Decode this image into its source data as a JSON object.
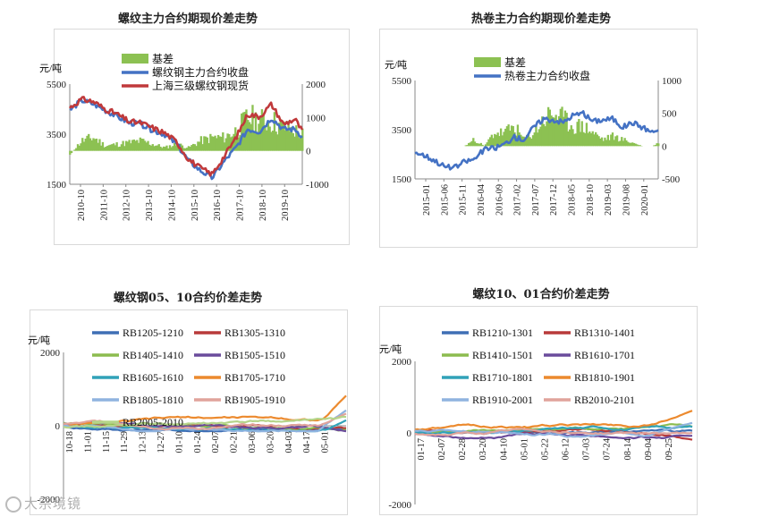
{
  "charts": [
    {
      "id": "c1",
      "title": "螺纹主力合约期现价差走势",
      "unit": "元/吨",
      "chart_data": {
        "type": "line",
        "title": "螺纹主力合约期现价差走势",
        "ylabel_left": "元/吨",
        "ylim_left": [
          1500,
          5500
        ],
        "yticks_left": [
          1500,
          3500,
          5500
        ],
        "ylim_right": [
          -1000,
          2000
        ],
        "yticks_right": [
          -1000,
          0,
          1000,
          2000
        ],
        "xticks": [
          "2010-10",
          "2011-10",
          "2012-10",
          "2013-10",
          "2014-10",
          "2015-10",
          "2016-10",
          "2017-10",
          "2018-10",
          "2019-10"
        ],
        "legend": [
          "基差",
          "螺纹钢主力合约收盘",
          "上海三级螺纹钢现货"
        ],
        "x_index": [
          0,
          0.5,
          1,
          1.5,
          2,
          2.5,
          3,
          3.5,
          4,
          4.5,
          5,
          5.5,
          6,
          6.5,
          7,
          7.5,
          8,
          8.5,
          9,
          9.5,
          9.8
        ],
        "series": [
          {
            "name": "螺纹钢主力合约收盘",
            "color": "#4472c4",
            "axis": "left",
            "values": [
              4450,
              4850,
              4700,
              4450,
              4200,
              3950,
              3900,
              3650,
              3500,
              3100,
              2450,
              2050,
              1750,
              2400,
              2950,
              3700,
              3600,
              4150,
              3700,
              3700,
              3400
            ]
          },
          {
            "name": "上海三级螺纹钢现货",
            "color": "#c0393b",
            "axis": "left",
            "values": [
              4550,
              4900,
              4800,
              4500,
              4300,
              4000,
              3950,
              3750,
              3550,
              3200,
              2500,
              2150,
              1900,
              2600,
              3350,
              4300,
              4200,
              4700,
              3900,
              4100,
              3600
            ]
          },
          {
            "name": "基差",
            "color": "#8cc152",
            "axis": "right",
            "type": "area",
            "values": [
              -100,
              300,
              400,
              150,
              200,
              250,
              300,
              200,
              100,
              200,
              100,
              300,
              400,
              400,
              600,
              1000,
              900,
              900,
              700,
              600,
              500
            ]
          }
        ]
      }
    },
    {
      "id": "c2",
      "title": "热卷主力合约期现价差走势",
      "unit": "元/吨",
      "chart_data": {
        "type": "line",
        "title": "热卷主力合约期现价差走势",
        "ylabel_left": "元/吨",
        "ylim_left": [
          1500,
          5500
        ],
        "yticks_left": [
          1500,
          3500,
          5500
        ],
        "ylim_right": [
          -500,
          1000
        ],
        "yticks_right": [
          -500,
          0,
          500,
          1000
        ],
        "xticks": [
          "2015-01",
          "2015-06",
          "2015-11",
          "2016-04",
          "2016-09",
          "2017-02",
          "2017-07",
          "2017-12",
          "2018-05",
          "2018-10",
          "2019-03",
          "2019-08",
          "2020-01"
        ],
        "legend": [
          "基差",
          "热卷主力合约收盘"
        ],
        "x_index": [
          0,
          0.5,
          1,
          1.5,
          2,
          2.5,
          3,
          3.5,
          4,
          4.5,
          5,
          5.5,
          6,
          6.5,
          7,
          7.5,
          8,
          8.5,
          9,
          9.5,
          10,
          10.5,
          11,
          11.5,
          12,
          12.3
        ],
        "series": [
          {
            "name": "热卷主力合约收盘",
            "color": "#4472c4",
            "axis": "left",
            "values": [
              2600,
              2450,
              2250,
              2000,
              1950,
              2200,
              2300,
              2700,
              2750,
              2900,
              3200,
              3100,
              3600,
              3950,
              3900,
              3800,
              4100,
              4150,
              3850,
              3900,
              3950,
              3600,
              3800,
              3600,
              3400,
              3500
            ]
          },
          {
            "name": "基差",
            "color": "#8cc152",
            "axis": "right",
            "type": "area",
            "values": [
              0,
              0,
              0,
              0,
              0,
              0,
              100,
              0,
              200,
              200,
              300,
              100,
              200,
              400,
              500,
              400,
              300,
              300,
              200,
              100,
              150,
              100,
              50,
              0,
              0,
              50
            ]
          }
        ]
      }
    },
    {
      "id": "c3",
      "title": "螺纹钢05、10合约价差走势",
      "unit": "元/吨",
      "chart_data": {
        "type": "line",
        "title": "螺纹钢05、10合约价差走势",
        "ylabel": "元/吨",
        "ylim": [
          -2000,
          2000
        ],
        "yticks": [
          -2000,
          0,
          2000
        ],
        "xticks": [
          "10-18",
          "11-01",
          "11-15",
          "11-29",
          "12-13",
          "12-27",
          "01-10",
          "01-24",
          "02-07",
          "02-21",
          "03-06",
          "03-20",
          "04-03",
          "04-17",
          "05-01"
        ],
        "series": [
          {
            "name": "RB1205-1210",
            "color": "#3f6fb5"
          },
          {
            "name": "RB1305-1310",
            "color": "#b83a3a"
          },
          {
            "name": "RB1405-1410",
            "color": "#8cbc4f"
          },
          {
            "name": "RB1505-1510",
            "color": "#6a4b9c"
          },
          {
            "name": "RB1605-1610",
            "color": "#31a2b8"
          },
          {
            "name": "RB1705-1710",
            "color": "#ec8a2e"
          },
          {
            "name": "RB1805-1810",
            "color": "#8fb3df"
          },
          {
            "name": "RB1905-1910",
            "color": "#e0a39b"
          },
          {
            "name": "RB2005-2010",
            "color": "#b5d58a"
          }
        ]
      }
    },
    {
      "id": "c4",
      "title": "螺纹10、01合约价差走势",
      "unit": "元/吨",
      "chart_data": {
        "type": "line",
        "title": "螺纹10、01合约价差走势",
        "ylabel": "元/吨",
        "ylim": [
          -2000,
          2000
        ],
        "yticks": [
          -2000,
          0,
          2000
        ],
        "xticks": [
          "01-17",
          "02-07",
          "02-28",
          "03-20",
          "04-10",
          "05-01",
          "05-22",
          "06-12",
          "07-03",
          "07-24",
          "08-14",
          "09-04",
          "09-25"
        ],
        "series": [
          {
            "name": "RB1210-1301",
            "color": "#3f6fb5"
          },
          {
            "name": "RB1310-1401",
            "color": "#b83a3a"
          },
          {
            "name": "RB1410-1501",
            "color": "#8cbc4f"
          },
          {
            "name": "RB1610-1701",
            "color": "#6a4b9c"
          },
          {
            "name": "RB1710-1801",
            "color": "#31a2b8"
          },
          {
            "name": "RB1810-1901",
            "color": "#ec8a2e"
          },
          {
            "name": "RB1910-2001",
            "color": "#8fb3df"
          },
          {
            "name": "RB2010-2101",
            "color": "#e0a39b"
          }
        ]
      }
    }
  ],
  "watermark": "大宗境镜"
}
